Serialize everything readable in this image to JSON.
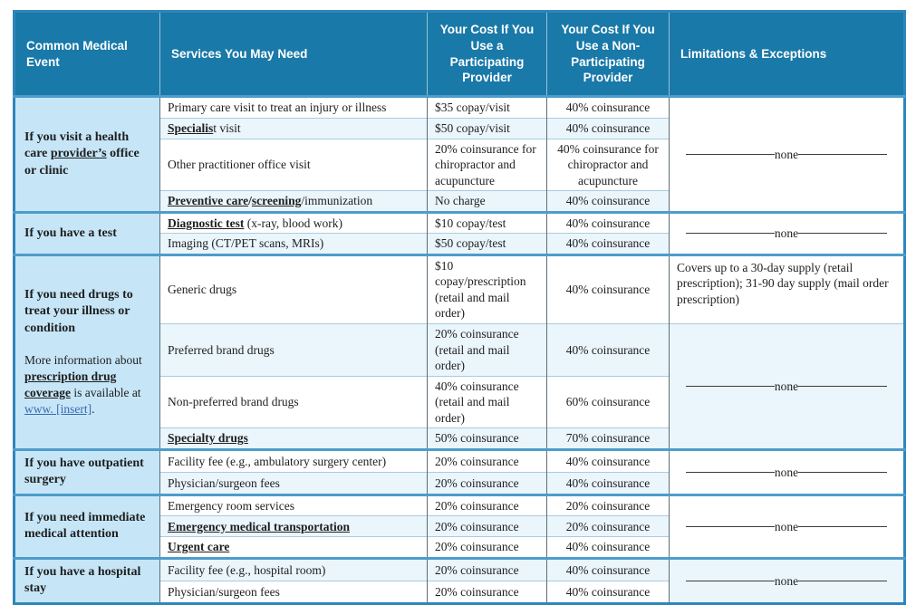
{
  "none_label": "none",
  "colors": {
    "header_bg": "#1979A8",
    "event_column_bg": "#C6E6F7",
    "alt_row_bg": "#EAF5FC",
    "group_separator": "#4E9CCB",
    "link_blue": "#3A66B0"
  },
  "header": {
    "col1": "Common Medical Event",
    "col2": "Services You May Need",
    "col3": "Your Cost If You Use a Participating Provider",
    "col4": "Your Cost If You Use a Non-Participating Provider",
    "col5": "Limitations & Exceptions"
  },
  "groups": [
    {
      "event": [
        [
          {
            "t": "If you visit a health care ",
            "b": 1
          },
          {
            "t": "provider’s",
            "b": 1,
            "u": 1
          },
          {
            "t": " office or clinic",
            "b": 1
          }
        ]
      ],
      "rows": [
        {
          "service": [
            {
              "t": "Primary care visit to treat an injury or illness"
            }
          ],
          "participating": "$35 copay/visit",
          "non_participating": "40% coinsurance"
        },
        {
          "service": [
            {
              "t": "Specialis",
              "b": 1,
              "u": 1
            },
            {
              "t": "t visit"
            }
          ],
          "participating": "$50 copay/visit",
          "non_participating": "40% coinsurance"
        },
        {
          "service": [
            {
              "t": "Other practitioner office visit"
            }
          ],
          "participating": "20% coinsurance for chiropractor and acupuncture",
          "non_participating": "40% coinsurance for chiropractor and acupuncture"
        },
        {
          "service": [
            {
              "t": "Preventive care",
              "b": 1,
              "u": 1
            },
            {
              "t": "/",
              "b": 1
            },
            {
              "t": "screening",
              "b": 1,
              "u": 1
            },
            {
              "t": "/immunization"
            }
          ],
          "participating": "No charge",
          "non_participating": "40% coinsurance"
        }
      ],
      "limitations": [
        {
          "span": 4,
          "kind": "none"
        }
      ]
    },
    {
      "event": [
        [
          {
            "t": "If you have a test",
            "b": 1
          }
        ]
      ],
      "rows": [
        {
          "service": [
            {
              "t": "Diagnostic test",
              "b": 1,
              "u": 1
            },
            {
              "t": " (x-ray, blood work)"
            }
          ],
          "participating": "$10 copay/test",
          "non_participating": "40% coinsurance"
        },
        {
          "service": [
            {
              "t": "Imaging (CT/PET scans, MRIs)"
            }
          ],
          "participating": "$50 copay/test",
          "non_participating": "40% coinsurance"
        }
      ],
      "limitations": [
        {
          "span": 2,
          "kind": "none"
        }
      ]
    },
    {
      "event": [
        [
          {
            "t": "If you need drugs to treat your illness or condition",
            "b": 1
          }
        ],
        [
          {
            "t": "More information about "
          },
          {
            "t": "prescription drug coverage",
            "b": 1,
            "u": 1
          },
          {
            "t": " is available at "
          },
          {
            "t": "www. [insert]",
            "link": 1
          },
          {
            "t": "."
          }
        ]
      ],
      "rows": [
        {
          "service": [
            {
              "t": "Generic drugs"
            }
          ],
          "participating": "$10 copay/prescription (retail and mail order)",
          "non_participating": "40% coinsurance"
        },
        {
          "service": [
            {
              "t": "Preferred brand drugs"
            }
          ],
          "participating": "20% coinsurance (retail and mail order)",
          "non_participating": "40% coinsurance"
        },
        {
          "service": [
            {
              "t": "Non-preferred brand drugs"
            }
          ],
          "participating": "40% coinsurance (retail and mail order)",
          "non_participating": "60% coinsurance"
        },
        {
          "service": [
            {
              "t": "Specialty drugs",
              "b": 1,
              "u": 1
            }
          ],
          "participating": "50% coinsurance",
          "non_participating": "70% coinsurance"
        }
      ],
      "limitations": [
        {
          "span": 1,
          "kind": "text",
          "text": "Covers up to a 30-day supply (retail prescription); 31-90 day supply (mail order prescription)"
        },
        {
          "span": 3,
          "kind": "none"
        }
      ]
    },
    {
      "event": [
        [
          {
            "t": "If you have outpatient surgery",
            "b": 1
          }
        ]
      ],
      "rows": [
        {
          "service": [
            {
              "t": "Facility fee (e.g., ambulatory surgery center)"
            }
          ],
          "participating": "20% coinsurance",
          "non_participating": "40% coinsurance"
        },
        {
          "service": [
            {
              "t": "Physician/surgeon fees"
            }
          ],
          "participating": "20% coinsurance",
          "non_participating": "40% coinsurance"
        }
      ],
      "limitations": [
        {
          "span": 2,
          "kind": "none"
        }
      ]
    },
    {
      "event": [
        [
          {
            "t": "If you need immediate medical attention",
            "b": 1
          }
        ]
      ],
      "rows": [
        {
          "service": [
            {
              "t": "Emergency room services"
            }
          ],
          "participating": "20% coinsurance",
          "non_participating": "20% coinsurance"
        },
        {
          "service": [
            {
              "t": "Emergency medical transportation",
              "b": 1,
              "u": 1
            }
          ],
          "participating": "20% coinsurance",
          "non_participating": "20% coinsurance"
        },
        {
          "service": [
            {
              "t": "Urgent care",
              "b": 1,
              "u": 1
            }
          ],
          "participating": "20% coinsurance",
          "non_participating": "40% coinsurance"
        }
      ],
      "limitations": [
        {
          "span": 3,
          "kind": "none"
        }
      ]
    },
    {
      "event": [
        [
          {
            "t": "If you have a hospital stay",
            "b": 1
          }
        ]
      ],
      "rows": [
        {
          "service": [
            {
              "t": "Facility fee (e.g., hospital room)"
            }
          ],
          "participating": "20% coinsurance",
          "non_participating": "40% coinsurance"
        },
        {
          "service": [
            {
              "t": "Physician/surgeon fees"
            }
          ],
          "participating": "20% coinsurance",
          "non_participating": "40% coinsurance"
        }
      ],
      "limitations": [
        {
          "span": 2,
          "kind": "none"
        }
      ]
    }
  ]
}
